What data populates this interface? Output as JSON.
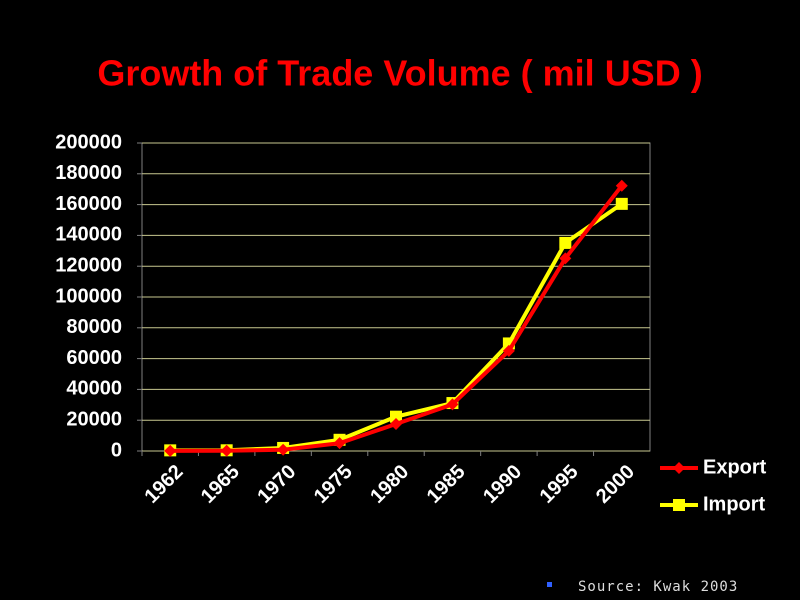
{
  "chart_data": {
    "type": "line",
    "title": "Growth of Trade Volume ( mil USD )",
    "categories": [
      "1962",
      "1965",
      "1970",
      "1975",
      "1980",
      "1985",
      "1990",
      "1995",
      "2000"
    ],
    "series": [
      {
        "name": "Export",
        "color": "#ff0000",
        "marker": "diamond",
        "values": [
          55,
          175,
          835,
          5081,
          17505,
          30283,
          65016,
          125058,
          172268
        ]
      },
      {
        "name": "Import",
        "color": "#ffff00",
        "marker": "square",
        "values": [
          422,
          463,
          1984,
          7274,
          22292,
          31136,
          69844,
          135119,
          160481
        ]
      }
    ],
    "ylim": [
      0,
      200000
    ],
    "yticks": [
      0,
      20000,
      40000,
      60000,
      80000,
      100000,
      120000,
      140000,
      160000,
      180000,
      200000
    ],
    "grid": true,
    "legend": "right",
    "annotation": "Source: Kwak 2003"
  }
}
